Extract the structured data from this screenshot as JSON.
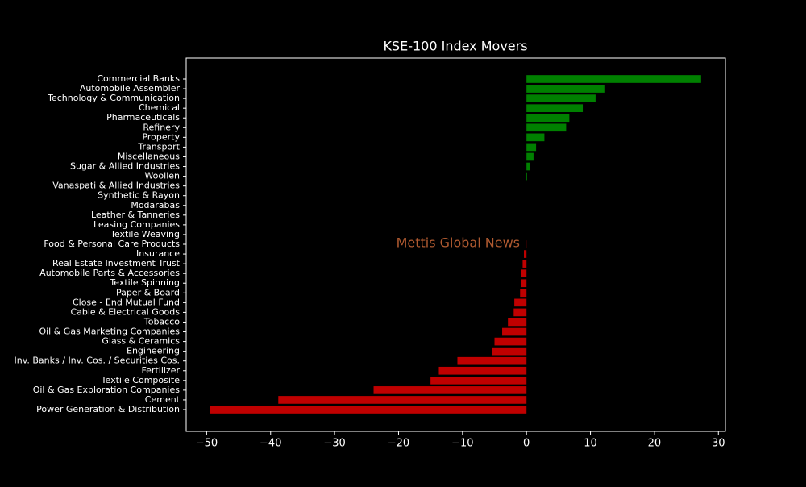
{
  "chart_data": {
    "type": "barh",
    "title": "KSE-100 Index Movers",
    "watermark": "Mettis Global News",
    "categories": [
      "Commercial Banks",
      "Automobile Assembler",
      "Technology & Communication",
      "Chemical",
      "Pharmaceuticals",
      "Refinery",
      "Property",
      "Transport",
      "Miscellaneous",
      "Sugar & Allied Industries",
      "Woollen",
      "Vanaspati & Allied Industries",
      "Synthetic & Rayon",
      "Modarabas",
      "Leather & Tanneries",
      "Leasing Companies",
      "Textile Weaving",
      "Food & Personal Care Products",
      "Insurance",
      "Real Estate Investment Trust",
      "Automobile Parts & Accessories",
      "Textile Spinning",
      "Paper & Board",
      "Close - End Mutual Fund",
      "Cable & Electrical Goods",
      "Tobacco",
      "Oil & Gas Marketing Companies",
      "Glass & Ceramics",
      "Engineering",
      "Inv. Banks / Inv. Cos. / Securities Cos.",
      "Fertilizer",
      "Textile Composite",
      "Oil & Gas Exploration Companies",
      "Cement",
      "Power Generation & Distribution"
    ],
    "values": [
      27.3,
      12.3,
      10.8,
      8.8,
      6.7,
      6.2,
      2.8,
      1.5,
      1.1,
      0.6,
      0.1,
      0,
      0,
      0,
      0,
      0,
      0,
      -0.1,
      -0.4,
      -0.6,
      -0.8,
      -0.9,
      -1.0,
      -1.9,
      -2.0,
      -2.9,
      -3.8,
      -5.0,
      -5.4,
      -10.8,
      -13.7,
      -15.0,
      -23.9,
      -38.8,
      -49.5
    ],
    "positive_color": "#008000",
    "negative_color": "#c00000",
    "xlim": [
      -53.2,
      31.1
    ],
    "xticks": [
      {
        "value": -50,
        "label": "−50"
      },
      {
        "value": -40,
        "label": "−40"
      },
      {
        "value": -30,
        "label": "−30"
      },
      {
        "value": -20,
        "label": "−20"
      },
      {
        "value": -10,
        "label": "−10"
      },
      0,
      10,
      20,
      30
    ]
  }
}
